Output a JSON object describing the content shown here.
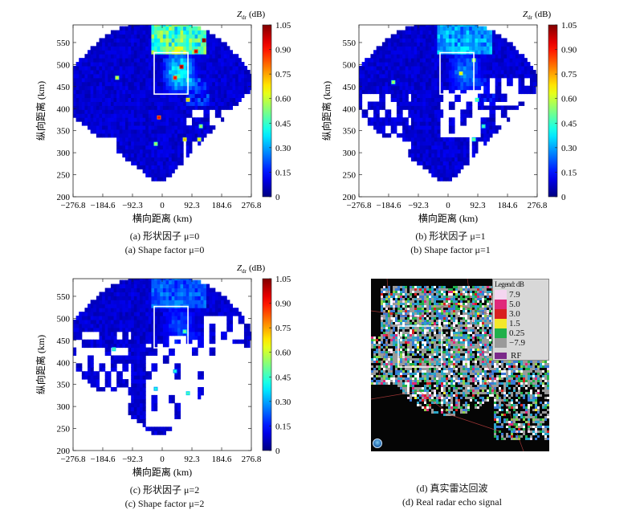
{
  "chart_data": [
    {
      "type": "heatmap",
      "id": "a",
      "xlabel": "横向距离 (km)",
      "ylabel": "纵向距离 (km)",
      "xticks": [
        "−276.8",
        "−184.6",
        "−92.3",
        "0",
        "92.3",
        "184.6",
        "276.8"
      ],
      "yticks": [
        "200",
        "250",
        "300",
        "350",
        "400",
        "450",
        "500",
        "550"
      ],
      "xlim": [
        -276.8,
        276.8
      ],
      "ylim": [
        200,
        590
      ],
      "colorbar": {
        "label_main": "Z",
        "label_sub": "dr",
        "unit": "(dB)",
        "ticks": [
          "1.05",
          "0.90",
          "0.75",
          "0.60",
          "0.45",
          "0.30",
          "0.15",
          "0"
        ],
        "range": [
          0,
          1.05
        ]
      },
      "caption_cn": "(a) 形状因子 μ=0",
      "caption_en": "(a) Shape factor μ=0",
      "box": {
        "x": [
          -25,
          80
        ],
        "y": [
          433,
          527
        ]
      },
      "mu": 0
    },
    {
      "type": "heatmap",
      "id": "b",
      "xlabel": "横向距离 (km)",
      "ylabel": "纵向距离 (km)",
      "xticks": [
        "−276.8",
        "−184.6",
        "−92.3",
        "0",
        "92.3",
        "184.6",
        "276.8"
      ],
      "yticks": [
        "200",
        "250",
        "300",
        "350",
        "400",
        "450",
        "500",
        "550"
      ],
      "xlim": [
        -276.8,
        276.8
      ],
      "ylim": [
        200,
        590
      ],
      "colorbar": {
        "label_main": "Z",
        "label_sub": "dr",
        "unit": "(dB)",
        "ticks": [
          "1.05",
          "0.90",
          "0.75",
          "0.60",
          "0.45",
          "0.30",
          "0.15",
          "0"
        ],
        "range": [
          0,
          1.05
        ]
      },
      "caption_cn": "(b) 形状因子 μ=1",
      "caption_en": "(b) Shape factor μ=1",
      "box": {
        "x": [
          -25,
          80
        ],
        "y": [
          433,
          527
        ]
      },
      "mu": 1
    },
    {
      "type": "heatmap",
      "id": "c",
      "xlabel": "横向距离 (km)",
      "ylabel": "纵向距离 (km)",
      "xticks": [
        "−276.8",
        "−184.6",
        "−92.3",
        "0",
        "92.3",
        "184.6",
        "276.8"
      ],
      "yticks": [
        "200",
        "250",
        "300",
        "350",
        "400",
        "450",
        "500",
        "550"
      ],
      "xlim": [
        -276.8,
        276.8
      ],
      "ylim": [
        200,
        590
      ],
      "colorbar": {
        "label_main": "Z",
        "label_sub": "dr",
        "unit": "(dB)",
        "ticks": [
          "1.05",
          "0.90",
          "0.75",
          "0.60",
          "0.45",
          "0.30",
          "0.15",
          "0"
        ],
        "range": [
          0,
          1.05
        ]
      },
      "caption_cn": "(c) 形状因子 μ=2",
      "caption_en": "(c) Shape factor μ=2",
      "box": {
        "x": [
          -25,
          80
        ],
        "y": [
          433,
          527
        ]
      },
      "mu": 2
    }
  ],
  "real_radar": {
    "legend_title": "Legend: dB",
    "legend_entries": [
      {
        "label": "7.9",
        "color": "#f4d6f0"
      },
      {
        "label": "5.0",
        "color": "#e0287a"
      },
      {
        "label": "3.0",
        "color": "#d81f1f"
      },
      {
        "label": "1.5",
        "color": "#f3e82a"
      },
      {
        "label": "0.25",
        "color": "#21b04a"
      },
      {
        "label": "−7.9",
        "color": "#9a9a9a"
      }
    ],
    "rf_label": "RF",
    "rf_color": "#7b2a8a",
    "caption_cn": "(d) 真实雷达回波",
    "caption_en": "(d) Real radar echo signal"
  }
}
